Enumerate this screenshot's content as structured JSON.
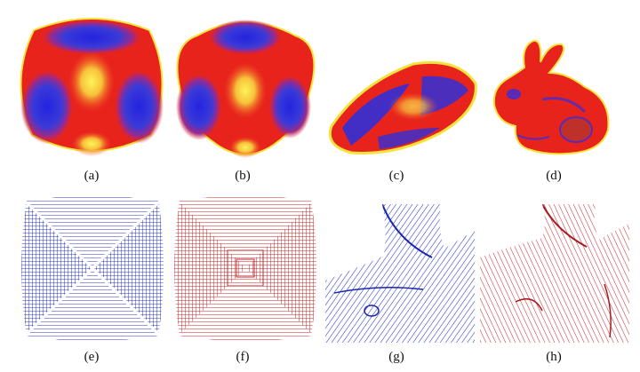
{
  "figure": {
    "subfigures": [
      {
        "label": "(a)"
      },
      {
        "label": "(b)"
      },
      {
        "label": "(c)"
      },
      {
        "label": "(d)"
      },
      {
        "label": "(e)"
      },
      {
        "label": "(f)"
      },
      {
        "label": "(g)"
      },
      {
        "label": "(h)"
      }
    ]
  },
  "colors": {
    "surface_red": "#e8231c",
    "surface_orange": "#f3701d",
    "surface_yellow": "#f4e33a",
    "surface_blue": "#2a2fd9",
    "hatch_blue": "#2a34c8",
    "hatch_red": "#c8232a"
  }
}
